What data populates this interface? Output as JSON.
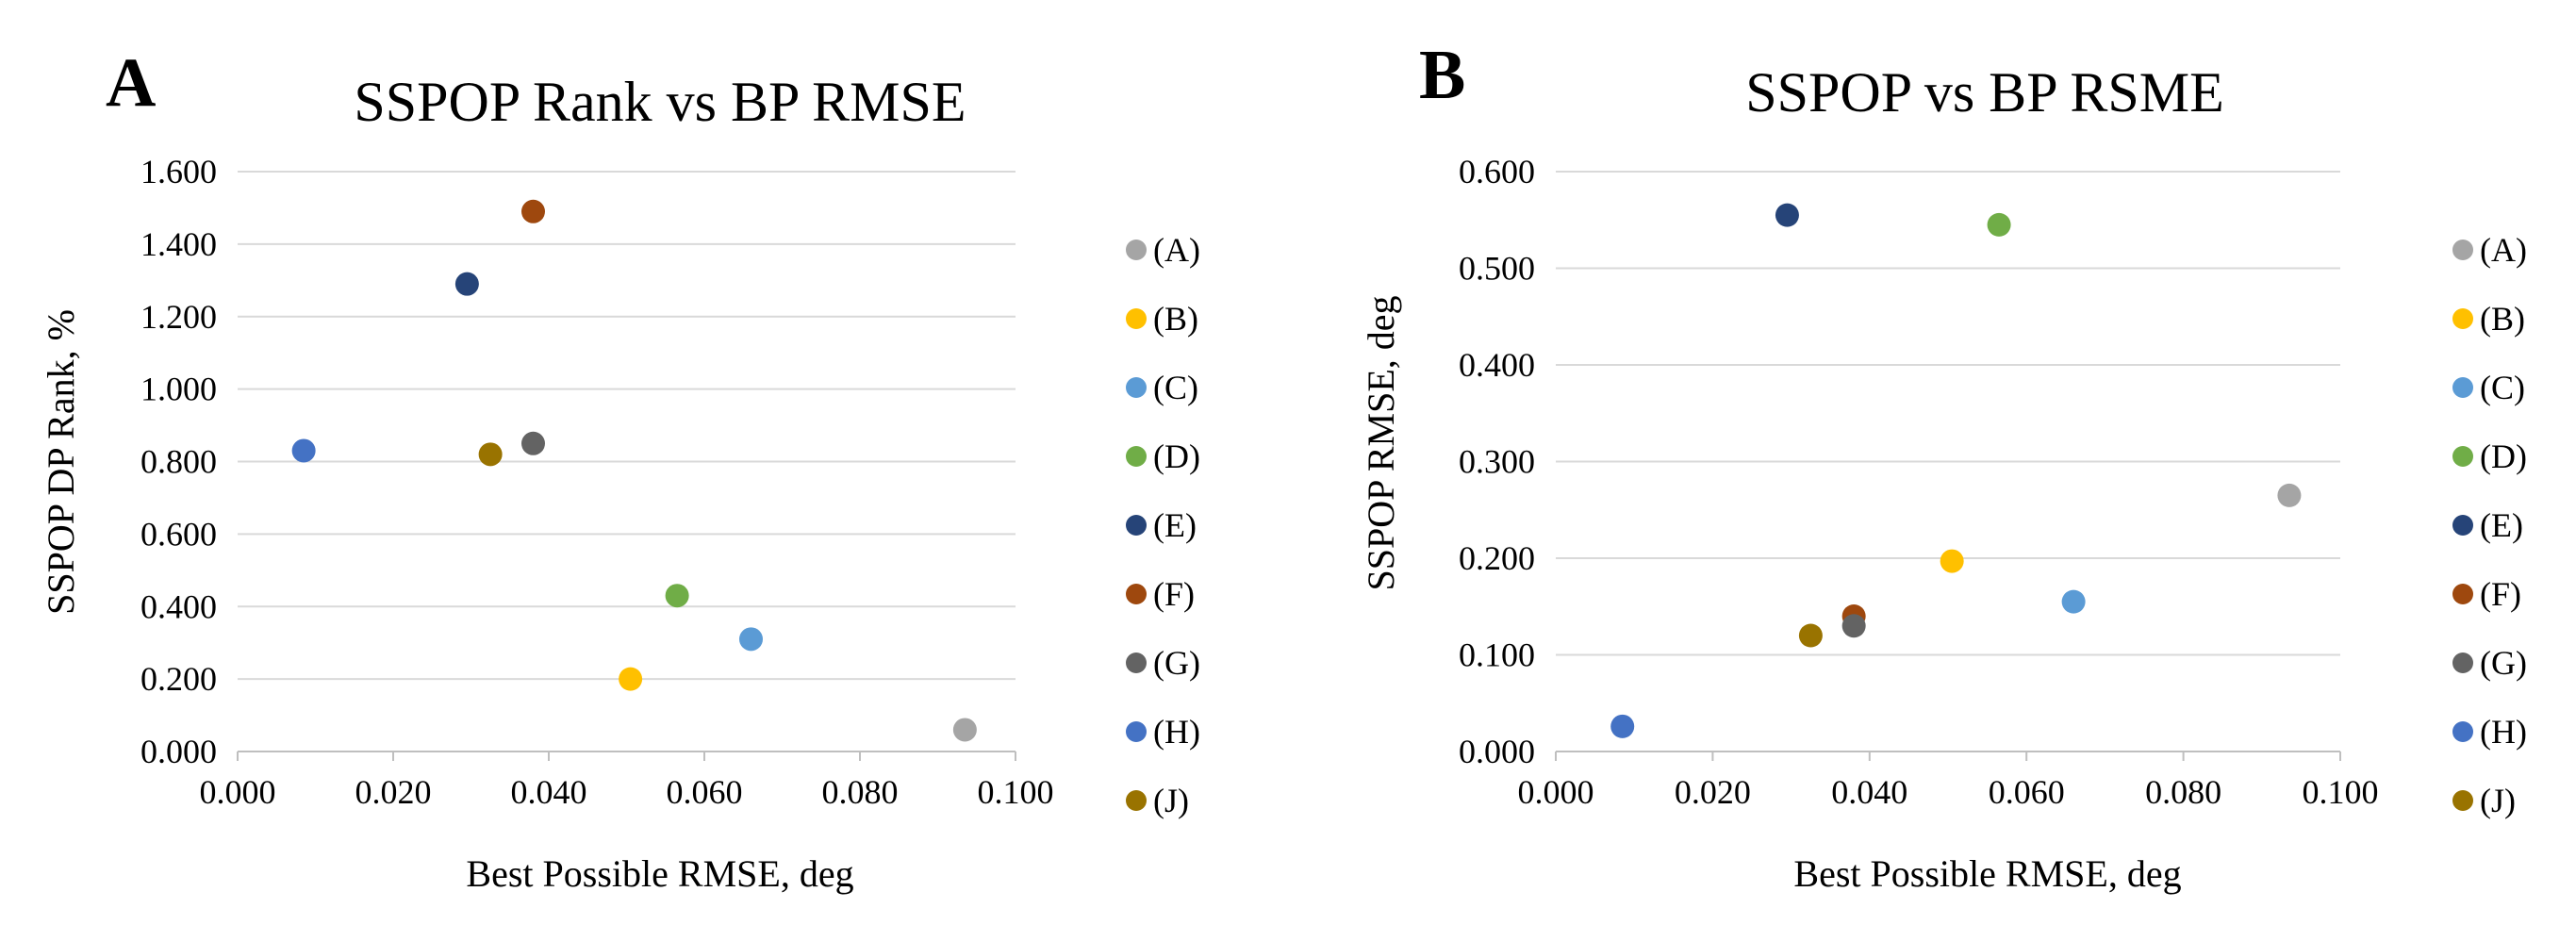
{
  "chart_data": [
    {
      "type": "scatter",
      "panel": "A",
      "title": "SSPOP Rank vs BP RMSE",
      "xlabel": "Best Possible RMSE, deg",
      "ylabel": "SSPOP DP Rank, %",
      "xlim": [
        0,
        0.1
      ],
      "ylim": [
        0,
        1.6
      ],
      "x_ticks": [
        "0.000",
        "0.020",
        "0.040",
        "0.060",
        "0.080",
        "0.100"
      ],
      "y_ticks": [
        "0.000",
        "0.200",
        "0.400",
        "0.600",
        "0.800",
        "1.000",
        "1.200",
        "1.400",
        "1.600"
      ],
      "grid": "horizontal",
      "legend_position": "right",
      "series": [
        {
          "name": "(A)",
          "color": "#a5a5a5",
          "x": [
            0.0935
          ],
          "y": [
            0.06
          ]
        },
        {
          "name": "(B)",
          "color": "#ffc000",
          "x": [
            0.0505
          ],
          "y": [
            0.2
          ]
        },
        {
          "name": "(C)",
          "color": "#5b9bd5",
          "x": [
            0.066
          ],
          "y": [
            0.31
          ]
        },
        {
          "name": "(D)",
          "color": "#70ad47",
          "x": [
            0.0565
          ],
          "y": [
            0.43
          ]
        },
        {
          "name": "(E)",
          "color": "#264478",
          "x": [
            0.0295
          ],
          "y": [
            1.29
          ]
        },
        {
          "name": "(F)",
          "color": "#9e480e",
          "x": [
            0.038
          ],
          "y": [
            1.49
          ]
        },
        {
          "name": "(G)",
          "color": "#636363",
          "x": [
            0.038
          ],
          "y": [
            0.85
          ]
        },
        {
          "name": "(H)",
          "color": "#4472c4",
          "x": [
            0.0085
          ],
          "y": [
            0.83
          ]
        },
        {
          "name": "(J)",
          "color": "#997300",
          "x": [
            0.0325
          ],
          "y": [
            0.82
          ]
        }
      ]
    },
    {
      "type": "scatter",
      "panel": "B",
      "title": "SSPOP vs BP RSME",
      "xlabel": "Best Possible RMSE, deg",
      "ylabel": "SSPOP RMSE, deg",
      "xlim": [
        0,
        0.1
      ],
      "ylim": [
        0,
        0.6
      ],
      "x_ticks": [
        "0.000",
        "0.020",
        "0.040",
        "0.060",
        "0.080",
        "0.100"
      ],
      "y_ticks": [
        "0.000",
        "0.100",
        "0.200",
        "0.300",
        "0.400",
        "0.500",
        "0.600"
      ],
      "grid": "horizontal",
      "legend_position": "right",
      "series": [
        {
          "name": "(A)",
          "color": "#a5a5a5",
          "x": [
            0.0935
          ],
          "y": [
            0.265
          ]
        },
        {
          "name": "(B)",
          "color": "#ffc000",
          "x": [
            0.0505
          ],
          "y": [
            0.197
          ]
        },
        {
          "name": "(C)",
          "color": "#5b9bd5",
          "x": [
            0.066
          ],
          "y": [
            0.155
          ]
        },
        {
          "name": "(D)",
          "color": "#70ad47",
          "x": [
            0.0565
          ],
          "y": [
            0.545
          ]
        },
        {
          "name": "(E)",
          "color": "#264478",
          "x": [
            0.0295
          ],
          "y": [
            0.555
          ]
        },
        {
          "name": "(F)",
          "color": "#9e480e",
          "x": [
            0.038
          ],
          "y": [
            0.14
          ]
        },
        {
          "name": "(G)",
          "color": "#636363",
          "x": [
            0.038
          ],
          "y": [
            0.13
          ]
        },
        {
          "name": "(H)",
          "color": "#4472c4",
          "x": [
            0.0085
          ],
          "y": [
            0.026
          ]
        },
        {
          "name": "(J)",
          "color": "#997300",
          "x": [
            0.0325
          ],
          "y": [
            0.12
          ]
        }
      ]
    }
  ]
}
